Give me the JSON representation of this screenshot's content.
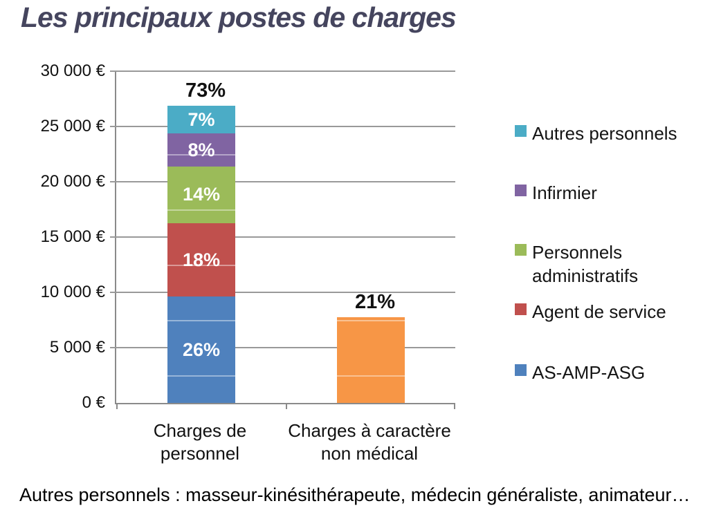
{
  "title": "Les principaux postes de charges",
  "footnote": "Autres personnels : masseur-kinésithérapeute, médecin généraliste, animateur…",
  "colors": {
    "title_text": "#45455E",
    "gridline": "#999999",
    "axis": "#8a8a8a",
    "series_blue": "#4F81BD",
    "series_red": "#C0504D",
    "series_green": "#9BBB59",
    "series_purple": "#8064A2",
    "series_teal": "#4BACC6",
    "series_orange": "#F79646"
  },
  "chart_data": {
    "type": "bar",
    "stacked": true,
    "title": "",
    "xlabel": "",
    "ylabel": "",
    "ylim": [
      0,
      30000
    ],
    "grid": true,
    "legend_position": "right",
    "y_ticks": [
      {
        "label": "30 000 €",
        "value": 30000
      },
      {
        "label": "25 000 €",
        "value": 25000
      },
      {
        "label": "20 000 €",
        "value": 20000
      },
      {
        "label": "15 000 €",
        "value": 15000
      },
      {
        "label": "10 000 €",
        "value": 10000
      },
      {
        "label": "5 000 €",
        "value": 5000
      },
      {
        "label": "0 €",
        "value": 0
      }
    ],
    "categories": [
      "Charges de\npersonnel",
      "Charges à caractère\nnon médical"
    ],
    "bars": [
      {
        "category": "Charges de personnel",
        "total_label": "73%",
        "segments": [
          {
            "name": "AS-AMP-ASG",
            "value": 9600,
            "pct_label": "26%",
            "color": "#4F81BD"
          },
          {
            "name": "Agent de service",
            "value": 6650,
            "pct_label": "18%",
            "color": "#C0504D"
          },
          {
            "name": "Personnels administratifs",
            "value": 5150,
            "pct_label": "14%",
            "color": "#9BBB59"
          },
          {
            "name": "Infirmier",
            "value": 2950,
            "pct_label": "8%",
            "color": "#8064A2"
          },
          {
            "name": "Autres personnels",
            "value": 2550,
            "pct_label": "7%",
            "color": "#4BACC6"
          }
        ]
      },
      {
        "category": "Charges à caractère non médical",
        "total_label": "21%",
        "segments": [
          {
            "name": "Charges à caractère non médical",
            "value": 7750,
            "pct_label": "",
            "color": "#F79646"
          }
        ]
      }
    ],
    "legend": [
      {
        "label": "Autres personnels",
        "color": "#4BACC6"
      },
      {
        "label": "Infirmier",
        "color": "#8064A2"
      },
      {
        "label": "Personnels administratifs",
        "color": "#9BBB59"
      },
      {
        "label": "Agent de service",
        "color": "#C0504D"
      },
      {
        "label": "AS-AMP-ASG",
        "color": "#4F81BD"
      }
    ]
  }
}
